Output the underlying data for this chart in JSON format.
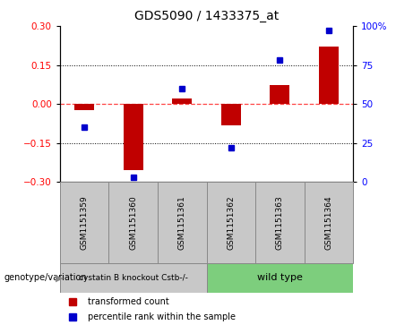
{
  "title": "GDS5090 / 1433375_at",
  "samples": [
    "GSM1151359",
    "GSM1151360",
    "GSM1151361",
    "GSM1151362",
    "GSM1151363",
    "GSM1151364"
  ],
  "red_values": [
    -0.022,
    -0.255,
    0.022,
    -0.082,
    0.072,
    0.222
  ],
  "blue_values": [
    35,
    3,
    60,
    22,
    78,
    97
  ],
  "ylim_left": [
    -0.3,
    0.3
  ],
  "ylim_right": [
    0,
    100
  ],
  "yticks_left": [
    -0.3,
    -0.15,
    0,
    0.15,
    0.3
  ],
  "yticks_right": [
    0,
    25,
    50,
    75,
    100
  ],
  "group1_label": "cystatin B knockout Cstb-/-",
  "group2_label": "wild type",
  "group1_color": "#c8c8c8",
  "group2_color": "#7dce7d",
  "sample_box_color": "#c8c8c8",
  "bar_color": "#c00000",
  "dot_color": "#0000cc",
  "hline_zero_color": "#ff4444",
  "hline_dotted_color": "#000000",
  "background_color": "#ffffff",
  "legend_labels": [
    "transformed count",
    "percentile rank within the sample"
  ],
  "genotype_label": "genotype/variation"
}
